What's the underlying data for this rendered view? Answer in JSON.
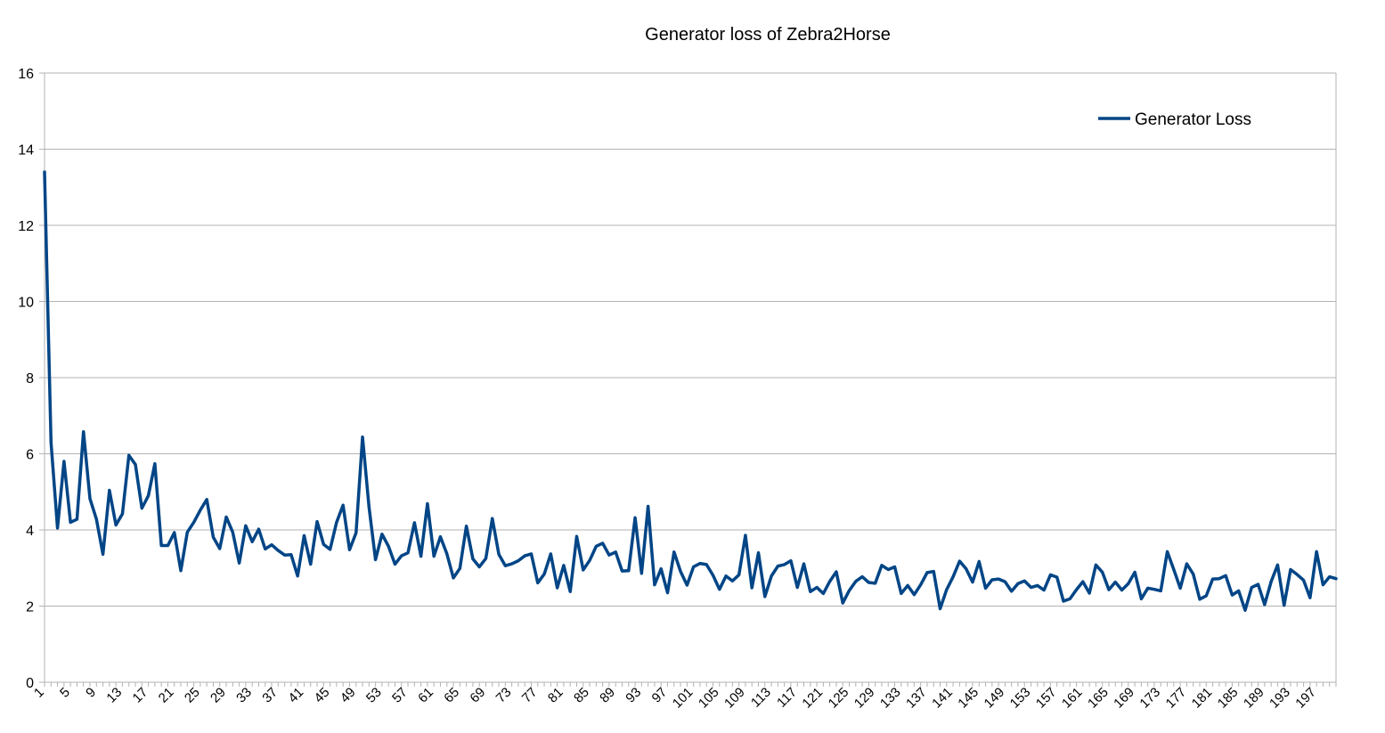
{
  "chart_data": {
    "type": "line",
    "title": "Generator loss of Zebra2Horse",
    "xlabel": "",
    "ylabel": "",
    "ylim": [
      0,
      16
    ],
    "yticks": [
      0,
      2,
      4,
      6,
      8,
      10,
      12,
      14,
      16
    ],
    "grid": "horizontal",
    "legend_position": "top-right",
    "x_start": 1,
    "x_end": 200,
    "x_tick_step": 4,
    "series": [
      {
        "name": "Generator Loss",
        "color": "#004586",
        "values": [
          13.4,
          6.3,
          4.05,
          5.8,
          4.2,
          4.28,
          6.58,
          4.82,
          4.28,
          3.36,
          5.04,
          4.13,
          4.42,
          5.96,
          5.72,
          4.57,
          4.9,
          5.74,
          3.59,
          3.59,
          3.93,
          2.93,
          3.94,
          4.2,
          4.52,
          4.8,
          3.81,
          3.51,
          4.34,
          3.94,
          3.13,
          4.11,
          3.69,
          4.02,
          3.5,
          3.61,
          3.46,
          3.34,
          3.35,
          2.79,
          3.85,
          3.1,
          4.22,
          3.62,
          3.49,
          4.2,
          4.65,
          3.48,
          3.92,
          6.44,
          4.6,
          3.22,
          3.89,
          3.57,
          3.1,
          3.32,
          3.4,
          4.19,
          3.31,
          4.69,
          3.31,
          3.82,
          3.37,
          2.74,
          2.99,
          4.1,
          3.24,
          3.03,
          3.25,
          4.3,
          3.36,
          3.06,
          3.11,
          3.19,
          3.32,
          3.37,
          2.61,
          2.84,
          3.37,
          2.48,
          3.07,
          2.38,
          3.83,
          2.95,
          3.2,
          3.57,
          3.65,
          3.34,
          3.42,
          2.92,
          2.93,
          4.32,
          2.86,
          4.62,
          2.56,
          2.98,
          2.35,
          3.42,
          2.91,
          2.55,
          3.03,
          3.12,
          3.09,
          2.81,
          2.44,
          2.79,
          2.66,
          2.82,
          3.86,
          2.48,
          3.4,
          2.25,
          2.79,
          3.05,
          3.09,
          3.19,
          2.49,
          3.11,
          2.38,
          2.49,
          2.33,
          2.65,
          2.9,
          2.08,
          2.41,
          2.65,
          2.77,
          2.62,
          2.6,
          3.07,
          2.96,
          3.03,
          2.33,
          2.54,
          2.3,
          2.56,
          2.88,
          2.91,
          1.93,
          2.43,
          2.77,
          3.18,
          2.98,
          2.63,
          3.17,
          2.47,
          2.69,
          2.71,
          2.64,
          2.39,
          2.59,
          2.66,
          2.49,
          2.54,
          2.42,
          2.82,
          2.76,
          2.13,
          2.19,
          2.43,
          2.64,
          2.34,
          3.08,
          2.89,
          2.43,
          2.63,
          2.42,
          2.59,
          2.89,
          2.19,
          2.47,
          2.44,
          2.4,
          3.43,
          2.96,
          2.47,
          3.11,
          2.84,
          2.18,
          2.27,
          2.71,
          2.72,
          2.8,
          2.29,
          2.4,
          1.89,
          2.49,
          2.57,
          2.04,
          2.64,
          3.08,
          2.02,
          2.96,
          2.83,
          2.68,
          2.22,
          3.43,
          2.56,
          2.77,
          2.72
        ]
      }
    ]
  }
}
